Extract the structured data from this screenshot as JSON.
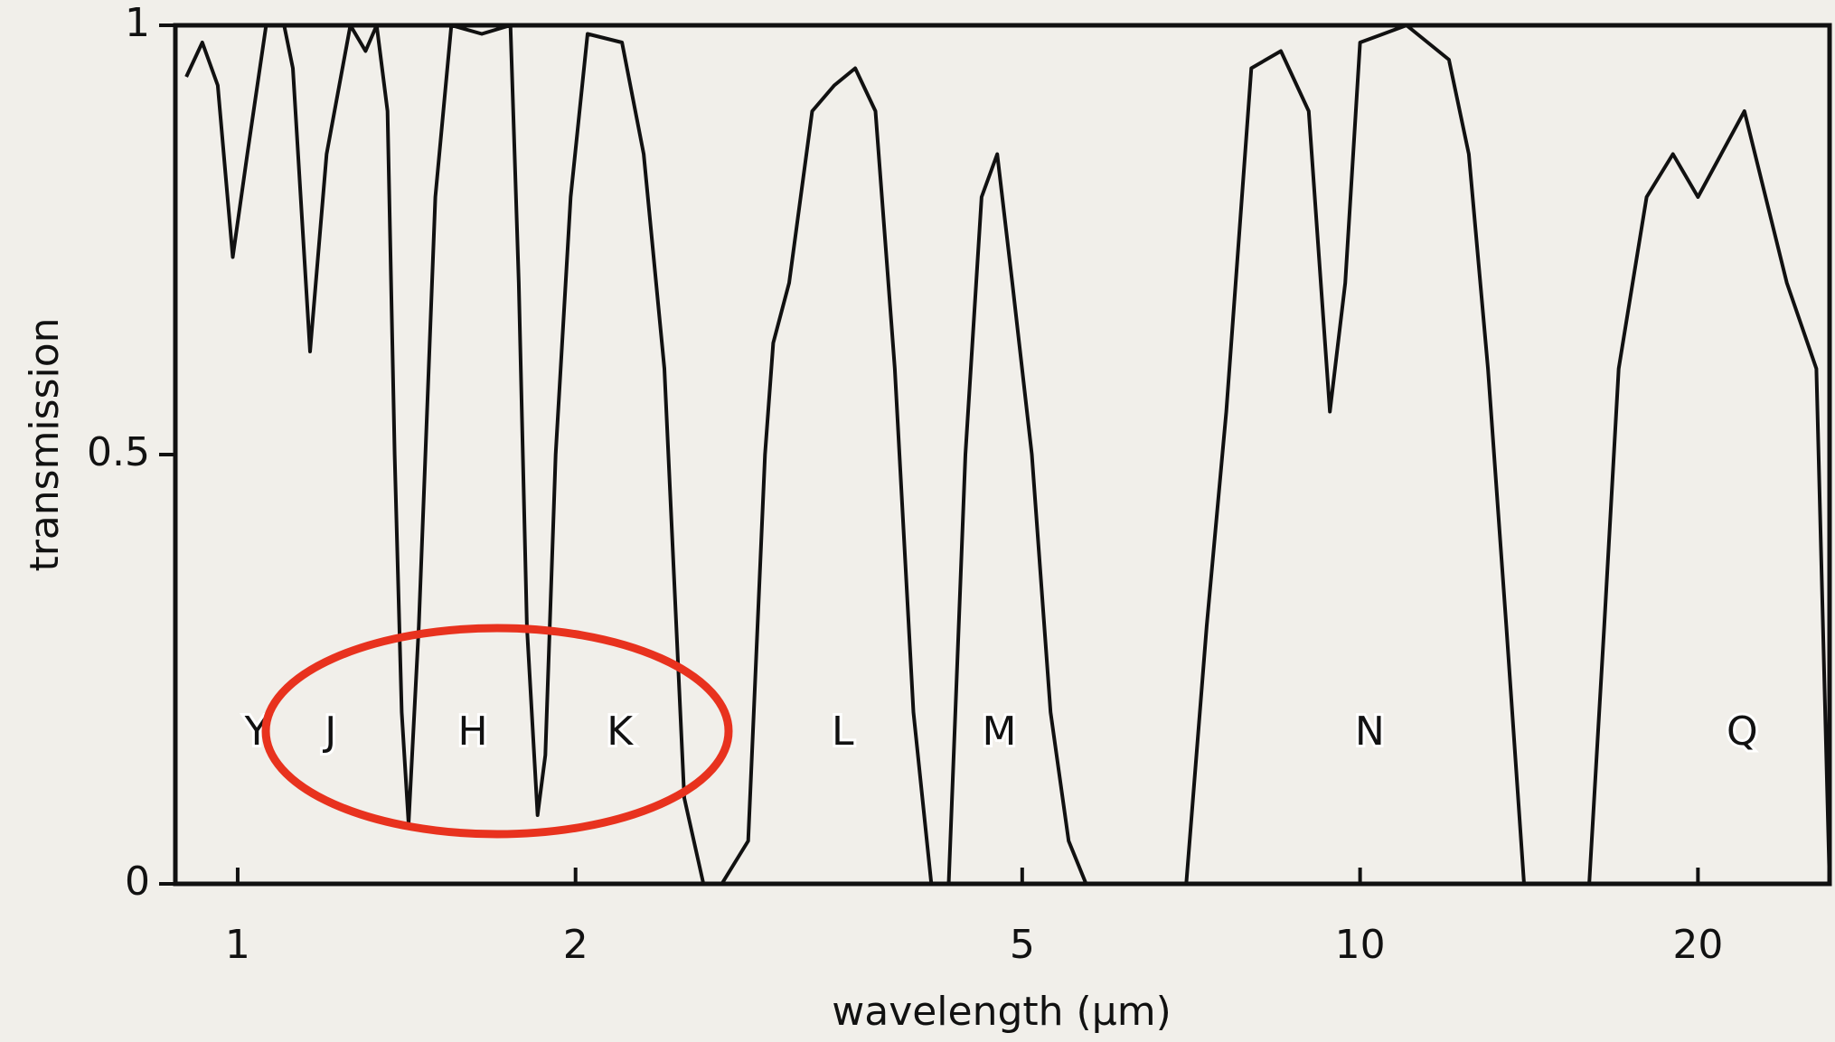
{
  "chart_data": {
    "type": "line",
    "xlabel": "wavelength (µm)",
    "ylabel": "transmission",
    "xscale": "log",
    "xlim": [
      0.88,
      26.2
    ],
    "ylim": [
      0,
      1
    ],
    "xticks": [
      1,
      2,
      5,
      10,
      20
    ],
    "yticks": [
      0,
      0.5,
      1
    ],
    "x": [
      0.9,
      0.93,
      0.96,
      0.99,
      1.02,
      1.06,
      1.1,
      1.12,
      1.16,
      1.2,
      1.26,
      1.3,
      1.33,
      1.36,
      1.38,
      1.4,
      1.42,
      1.45,
      1.5,
      1.55,
      1.65,
      1.75,
      1.78,
      1.81,
      1.85,
      1.88,
      1.92,
      1.98,
      2.05,
      2.2,
      2.3,
      2.4,
      2.5,
      2.6,
      2.7,
      2.85,
      2.95,
      3.0,
      3.1,
      3.25,
      3.4,
      3.55,
      3.7,
      3.85,
      4.0,
      4.15,
      4.3,
      4.45,
      4.6,
      4.75,
      4.9,
      5.1,
      5.3,
      5.5,
      5.7,
      7.0,
      7.3,
      7.6,
      8.0,
      8.5,
      9.0,
      9.4,
      9.7,
      10.0,
      11.0,
      12.0,
      12.5,
      13.0,
      13.5,
      14.0,
      16.0,
      16.5,
      17.0,
      18.0,
      19.0,
      20.0,
      22.0,
      24.0,
      25.5,
      26.2
    ],
    "series": [
      {
        "color": "#111111",
        "values": [
          0.94,
          0.98,
          0.93,
          0.73,
          0.85,
          1.0,
          1.0,
          0.95,
          0.62,
          0.85,
          1.0,
          0.97,
          1.0,
          0.9,
          0.5,
          0.2,
          0.07,
          0.3,
          0.8,
          1.0,
          0.99,
          1.0,
          0.7,
          0.3,
          0.08,
          0.15,
          0.5,
          0.8,
          0.99,
          0.98,
          0.85,
          0.6,
          0.1,
          0.0,
          0.0,
          0.05,
          0.5,
          0.63,
          0.7,
          0.9,
          0.93,
          0.95,
          0.9,
          0.6,
          0.2,
          0.0,
          0.0,
          0.5,
          0.8,
          0.85,
          0.7,
          0.5,
          0.2,
          0.05,
          0.0,
          0.0,
          0.3,
          0.55,
          0.95,
          0.97,
          0.9,
          0.55,
          0.7,
          0.98,
          1.0,
          0.96,
          0.85,
          0.6,
          0.3,
          0.0,
          0.0,
          0.3,
          0.6,
          0.8,
          0.85,
          0.8,
          0.9,
          0.7,
          0.6,
          0.0
        ]
      }
    ],
    "annotations": [
      {
        "text": "Y",
        "x": 1.04
      },
      {
        "text": "J",
        "x": 1.21
      },
      {
        "text": "H",
        "x": 1.62
      },
      {
        "text": "K",
        "x": 2.19
      },
      {
        "text": "L",
        "x": 3.46
      },
      {
        "text": "M",
        "x": 4.77
      },
      {
        "text": "N",
        "x": 10.2
      },
      {
        "text": "Q",
        "x": 21.9
      }
    ]
  }
}
